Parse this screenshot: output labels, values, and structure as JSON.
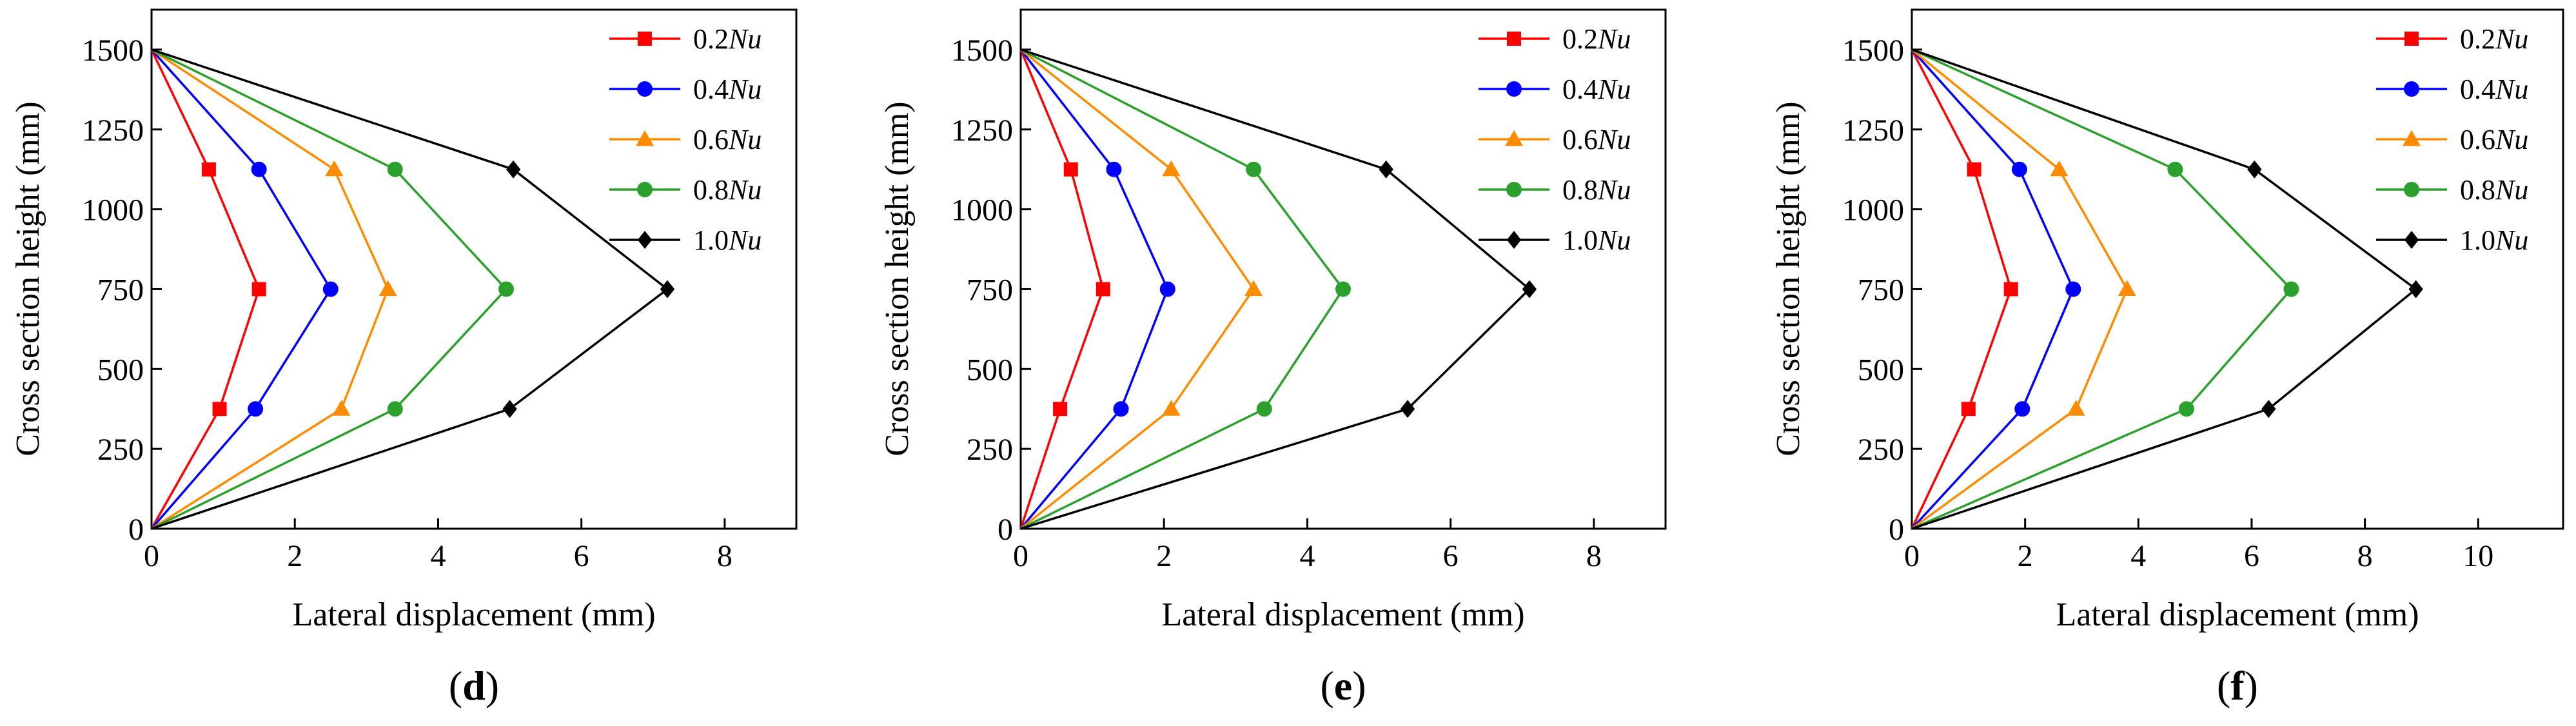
{
  "chart_data": [
    {
      "type": "line",
      "panel_label": {
        "open": "(",
        "letter": "d",
        "close": ")"
      },
      "xlabel": "Lateral displacement (mm)",
      "ylabel": "Cross section height (mm)",
      "xlim": [
        0,
        9
      ],
      "ylim": [
        0,
        1625
      ],
      "xticks": [
        0,
        2,
        4,
        6,
        8
      ],
      "yticks": [
        0,
        250,
        500,
        750,
        1000,
        1250,
        1500
      ],
      "legend_position": "top-right",
      "series": [
        {
          "name": "0.2Nu",
          "coef": "0.2",
          "unit": "Nu",
          "color": "#ff0000",
          "marker": "square",
          "points": [
            [
              0,
              0
            ],
            [
              0.95,
              375
            ],
            [
              1.5,
              750
            ],
            [
              0.8,
              1125
            ],
            [
              0,
              1500
            ]
          ]
        },
        {
          "name": "0.4Nu",
          "coef": "0.4",
          "unit": "Nu",
          "color": "#0000ff",
          "marker": "circle",
          "points": [
            [
              0,
              0
            ],
            [
              1.45,
              375
            ],
            [
              2.5,
              750
            ],
            [
              1.5,
              1125
            ],
            [
              0,
              1500
            ]
          ]
        },
        {
          "name": "0.6Nu",
          "coef": "0.6",
          "unit": "Nu",
          "color": "#ff8c00",
          "marker": "triangle",
          "points": [
            [
              0,
              0
            ],
            [
              2.65,
              375
            ],
            [
              3.3,
              750
            ],
            [
              2.55,
              1125
            ],
            [
              0,
              1500
            ]
          ]
        },
        {
          "name": "0.8Nu",
          "coef": "0.8",
          "unit": "Nu",
          "color": "#2ca02c",
          "marker": "circle",
          "points": [
            [
              0,
              0
            ],
            [
              3.4,
              375
            ],
            [
              4.95,
              750
            ],
            [
              3.4,
              1125
            ],
            [
              0,
              1500
            ]
          ]
        },
        {
          "name": "1.0Nu",
          "coef": "1.0",
          "unit": "Nu",
          "color": "#000000",
          "marker": "diamond",
          "points": [
            [
              0,
              0
            ],
            [
              5.0,
              375
            ],
            [
              7.2,
              750
            ],
            [
              5.05,
              1125
            ],
            [
              0,
              1500
            ]
          ]
        }
      ]
    },
    {
      "type": "line",
      "panel_label": {
        "open": "(",
        "letter": "e",
        "close": ")"
      },
      "xlabel": "Lateral displacement (mm)",
      "ylabel": "Cross section height (mm)",
      "xlim": [
        0,
        9
      ],
      "ylim": [
        0,
        1625
      ],
      "xticks": [
        0,
        2,
        4,
        6,
        8
      ],
      "yticks": [
        0,
        250,
        500,
        750,
        1000,
        1250,
        1500
      ],
      "legend_position": "top-right",
      "series": [
        {
          "name": "0.2Nu",
          "coef": "0.2",
          "unit": "Nu",
          "color": "#ff0000",
          "marker": "square",
          "points": [
            [
              0,
              0
            ],
            [
              0.55,
              375
            ],
            [
              1.15,
              750
            ],
            [
              0.7,
              1125
            ],
            [
              0,
              1500
            ]
          ]
        },
        {
          "name": "0.4Nu",
          "coef": "0.4",
          "unit": "Nu",
          "color": "#0000ff",
          "marker": "circle",
          "points": [
            [
              0,
              0
            ],
            [
              1.4,
              375
            ],
            [
              2.05,
              750
            ],
            [
              1.3,
              1125
            ],
            [
              0,
              1500
            ]
          ]
        },
        {
          "name": "0.6Nu",
          "coef": "0.6",
          "unit": "Nu",
          "color": "#ff8c00",
          "marker": "triangle",
          "points": [
            [
              0,
              0
            ],
            [
              2.1,
              375
            ],
            [
              3.25,
              750
            ],
            [
              2.1,
              1125
            ],
            [
              0,
              1500
            ]
          ]
        },
        {
          "name": "0.8Nu",
          "coef": "0.8",
          "unit": "Nu",
          "color": "#2ca02c",
          "marker": "circle",
          "points": [
            [
              0,
              0
            ],
            [
              3.4,
              375
            ],
            [
              4.5,
              750
            ],
            [
              3.25,
              1125
            ],
            [
              0,
              1500
            ]
          ]
        },
        {
          "name": "1.0Nu",
          "coef": "1.0",
          "unit": "Nu",
          "color": "#000000",
          "marker": "diamond",
          "points": [
            [
              0,
              0
            ],
            [
              5.4,
              375
            ],
            [
              7.1,
              750
            ],
            [
              5.1,
              1125
            ],
            [
              0,
              1500
            ]
          ]
        }
      ]
    },
    {
      "type": "line",
      "panel_label": {
        "open": "(",
        "letter": "f",
        "close": ")"
      },
      "xlabel": "Lateral displacement (mm)",
      "ylabel": "Cross section height (mm)",
      "xlim": [
        0,
        11.5
      ],
      "ylim": [
        0,
        1625
      ],
      "xticks": [
        0,
        2,
        4,
        6,
        8,
        10
      ],
      "yticks": [
        0,
        250,
        500,
        750,
        1000,
        1250,
        1500
      ],
      "legend_position": "top-right",
      "series": [
        {
          "name": "0.2Nu",
          "coef": "0.2",
          "unit": "Nu",
          "color": "#ff0000",
          "marker": "square",
          "points": [
            [
              0,
              0
            ],
            [
              1.0,
              375
            ],
            [
              1.75,
              750
            ],
            [
              1.1,
              1125
            ],
            [
              0,
              1500
            ]
          ]
        },
        {
          "name": "0.4Nu",
          "coef": "0.4",
          "unit": "Nu",
          "color": "#0000ff",
          "marker": "circle",
          "points": [
            [
              0,
              0
            ],
            [
              1.95,
              375
            ],
            [
              2.85,
              750
            ],
            [
              1.9,
              1125
            ],
            [
              0,
              1500
            ]
          ]
        },
        {
          "name": "0.6Nu",
          "coef": "0.6",
          "unit": "Nu",
          "color": "#ff8c00",
          "marker": "triangle",
          "points": [
            [
              0,
              0
            ],
            [
              2.9,
              375
            ],
            [
              3.8,
              750
            ],
            [
              2.6,
              1125
            ],
            [
              0,
              1500
            ]
          ]
        },
        {
          "name": "0.8Nu",
          "coef": "0.8",
          "unit": "Nu",
          "color": "#2ca02c",
          "marker": "circle",
          "points": [
            [
              0,
              0
            ],
            [
              4.85,
              375
            ],
            [
              6.7,
              750
            ],
            [
              4.65,
              1125
            ],
            [
              0,
              1500
            ]
          ]
        },
        {
          "name": "1.0Nu",
          "coef": "1.0",
          "unit": "Nu",
          "color": "#000000",
          "marker": "diamond",
          "points": [
            [
              0,
              0
            ],
            [
              6.3,
              375
            ],
            [
              8.9,
              750
            ],
            [
              6.05,
              1125
            ],
            [
              0,
              1500
            ]
          ]
        }
      ]
    }
  ]
}
